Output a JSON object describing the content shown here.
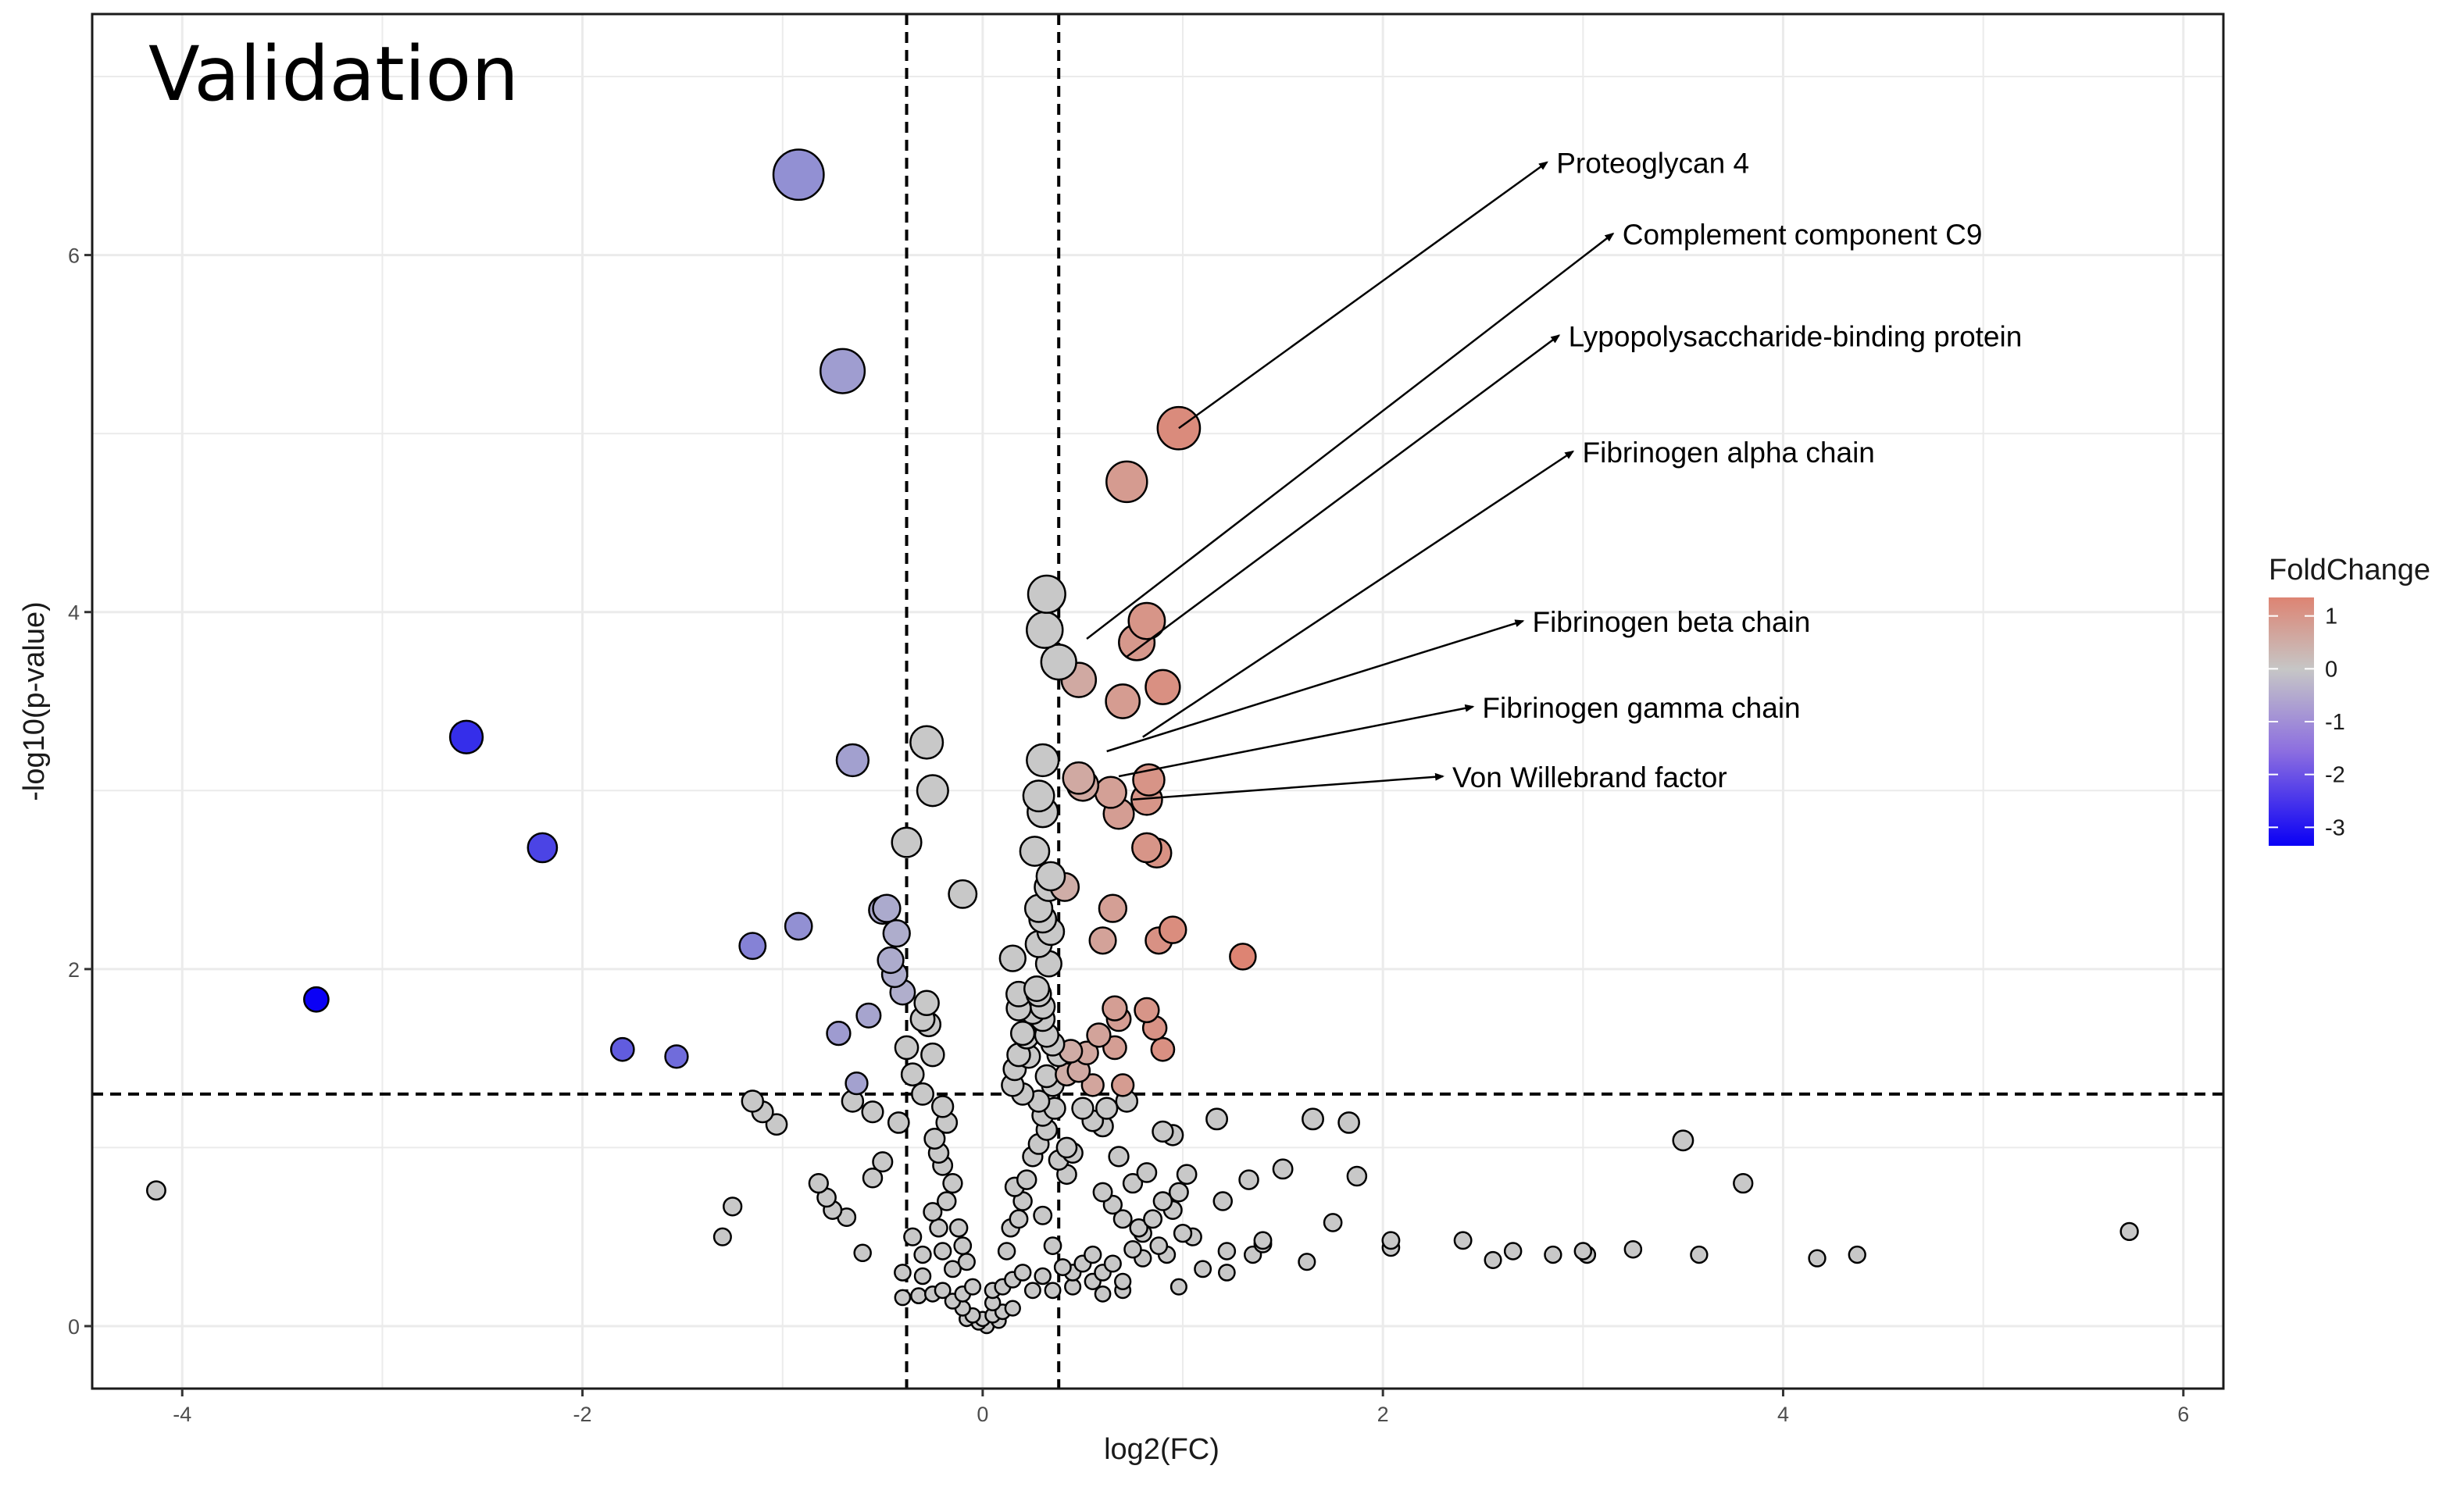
{
  "chart_data": {
    "type": "scatter",
    "title": "Validation",
    "xlabel": "log2(FC)",
    "ylabel": "-log10(p-value)",
    "xlim": [
      -4.45,
      6.2
    ],
    "ylim": [
      -0.35,
      7.35
    ],
    "x_ticks": [
      -4,
      -2,
      0,
      2,
      4,
      6
    ],
    "y_ticks": [
      0,
      2,
      4,
      6
    ],
    "x_tick_labels": [
      "-4",
      "-2",
      "0",
      "2",
      "4",
      "6"
    ],
    "y_tick_labels": [
      "0",
      "2",
      "4",
      "6"
    ],
    "grid": true,
    "thresholds": {
      "x": [
        -0.38,
        0.38
      ],
      "y": 1.3
    },
    "legend": {
      "title": "FoldChange",
      "position": "right",
      "range": [
        -3.35,
        1.35
      ],
      "ticks": [
        1,
        0,
        -1,
        -2,
        -3
      ],
      "tick_labels": [
        "1",
        "0",
        "-1",
        "-2",
        "-3"
      ],
      "colors": {
        "low": "#0a00f5",
        "mid": "#c6c6c6",
        "high": "#dd8473"
      }
    },
    "point_colors": {
      "insignificant": "#c8c8c8",
      "outline": "#000000"
    },
    "points": [
      [
        -4.13,
        0.76
      ],
      [
        -3.33,
        1.83
      ],
      [
        -2.58,
        3.3
      ],
      [
        -2.2,
        2.68
      ],
      [
        -1.8,
        1.55
      ],
      [
        -1.53,
        1.51
      ],
      [
        -1.15,
        2.13
      ],
      [
        -0.92,
        2.24
      ],
      [
        -0.92,
        6.45
      ],
      [
        -0.7,
        5.35
      ],
      [
        -0.65,
        3.17
      ],
      [
        -0.72,
        1.64
      ],
      [
        -0.63,
        1.36
      ],
      [
        -0.57,
        1.74
      ],
      [
        -0.5,
        2.33
      ],
      [
        -0.48,
        2.34
      ],
      [
        -0.46,
        2.05
      ],
      [
        -0.44,
        1.97
      ],
      [
        -0.43,
        2.2
      ],
      [
        -0.4,
        1.87
      ],
      [
        -0.38,
        2.71
      ],
      [
        -0.3,
        1.72
      ],
      [
        -0.28,
        1.81
      ],
      [
        -0.27,
        1.69
      ],
      [
        -0.28,
        3.27
      ],
      [
        -0.25,
        3.0
      ],
      [
        -0.1,
        2.42
      ],
      [
        -0.38,
        1.56
      ],
      [
        -0.35,
        1.41
      ],
      [
        -0.3,
        1.3
      ],
      [
        -0.25,
        1.52
      ],
      [
        -0.2,
        1.23
      ],
      [
        -0.24,
        1.05
      ],
      [
        -0.18,
        1.14
      ],
      [
        -0.5,
        0.92
      ],
      [
        -0.55,
        0.83
      ],
      [
        -0.65,
        1.26
      ],
      [
        -0.42,
        1.14
      ],
      [
        -1.15,
        1.26
      ],
      [
        -1.1,
        1.2
      ],
      [
        -1.03,
        1.13
      ],
      [
        -0.82,
        0.8
      ],
      [
        -0.78,
        0.72
      ],
      [
        -0.75,
        0.65
      ],
      [
        -0.68,
        0.61
      ],
      [
        -0.6,
        0.41
      ],
      [
        -1.25,
        0.67
      ],
      [
        -1.3,
        0.5
      ],
      [
        -0.55,
        1.2
      ],
      [
        -0.35,
        0.5
      ],
      [
        -0.3,
        0.4
      ],
      [
        -0.3,
        0.28
      ],
      [
        -0.4,
        0.3
      ],
      [
        -0.4,
        0.16
      ],
      [
        -0.32,
        0.17
      ],
      [
        -0.25,
        0.18
      ],
      [
        -0.2,
        0.2
      ],
      [
        -0.15,
        0.14
      ],
      [
        -0.1,
        0.1
      ],
      [
        -0.05,
        0.06
      ],
      [
        0.0,
        0.04
      ],
      [
        0.05,
        0.06
      ],
      [
        0.1,
        0.08
      ],
      [
        0.15,
        0.1
      ],
      [
        -0.1,
        0.18
      ],
      [
        -0.05,
        0.22
      ],
      [
        0.05,
        0.2
      ],
      [
        0.1,
        0.22
      ],
      [
        0.15,
        0.26
      ],
      [
        0.2,
        0.3
      ],
      [
        0.25,
        0.2
      ],
      [
        -0.15,
        0.32
      ],
      [
        -0.2,
        0.42
      ],
      [
        -0.22,
        0.55
      ],
      [
        -0.25,
        0.64
      ],
      [
        -0.18,
        0.7
      ],
      [
        -0.15,
        0.8
      ],
      [
        -0.2,
        0.9
      ],
      [
        -0.22,
        0.97
      ],
      [
        -0.12,
        0.55
      ],
      [
        -0.1,
        0.45
      ],
      [
        -0.08,
        0.36
      ],
      [
        0.12,
        0.42
      ],
      [
        0.14,
        0.55
      ],
      [
        0.18,
        0.6
      ],
      [
        0.2,
        0.7
      ],
      [
        0.16,
        0.78
      ],
      [
        0.22,
        0.82
      ],
      [
        0.25,
        0.95
      ],
      [
        0.28,
        1.02
      ],
      [
        0.32,
        1.1
      ],
      [
        0.3,
        0.62
      ],
      [
        0.35,
        0.45
      ],
      [
        0.4,
        0.33
      ],
      [
        0.45,
        0.22
      ],
      [
        0.35,
        0.2
      ],
      [
        0.3,
        0.28
      ],
      [
        0.05,
        0.13
      ],
      [
        -0.02,
        0.02
      ],
      [
        0.02,
        0.0
      ],
      [
        0.08,
        0.03
      ],
      [
        -0.08,
        0.04
      ],
      [
        0.15,
        2.06
      ],
      [
        0.18,
        1.86
      ],
      [
        0.18,
        1.78
      ],
      [
        0.2,
        1.64
      ],
      [
        0.18,
        1.52
      ],
      [
        0.16,
        1.44
      ],
      [
        0.15,
        1.35
      ],
      [
        0.2,
        1.3
      ],
      [
        0.23,
        1.51
      ],
      [
        0.22,
        1.62
      ],
      [
        0.25,
        1.76
      ],
      [
        0.27,
        1.89
      ],
      [
        0.28,
        1.86
      ],
      [
        0.3,
        1.79
      ],
      [
        0.3,
        1.72
      ],
      [
        0.32,
        1.63
      ],
      [
        0.35,
        1.58
      ],
      [
        0.38,
        1.52
      ],
      [
        0.32,
        1.4
      ],
      [
        0.35,
        1.35
      ],
      [
        0.28,
        1.26
      ],
      [
        0.3,
        1.18
      ],
      [
        0.36,
        1.22
      ],
      [
        0.42,
        1.0
      ],
      [
        0.45,
        0.97
      ],
      [
        0.38,
        0.93
      ],
      [
        0.42,
        0.85
      ],
      [
        0.5,
        1.22
      ],
      [
        0.55,
        1.15
      ],
      [
        0.62,
        1.22
      ],
      [
        0.6,
        1.12
      ],
      [
        0.72,
        1.26
      ],
      [
        0.68,
        0.95
      ],
      [
        0.75,
        0.8
      ],
      [
        0.82,
        0.86
      ],
      [
        0.6,
        0.75
      ],
      [
        0.65,
        0.68
      ],
      [
        0.7,
        0.6
      ],
      [
        0.8,
        0.52
      ],
      [
        0.85,
        0.6
      ],
      [
        0.9,
        0.7
      ],
      [
        0.95,
        0.65
      ],
      [
        0.98,
        0.75
      ],
      [
        1.02,
        0.85
      ],
      [
        1.05,
        0.5
      ],
      [
        1.0,
        0.52
      ],
      [
        1.2,
        0.7
      ],
      [
        1.33,
        0.82
      ],
      [
        1.5,
        0.88
      ],
      [
        1.65,
        1.16
      ],
      [
        1.83,
        1.14
      ],
      [
        1.87,
        0.84
      ],
      [
        1.75,
        0.58
      ],
      [
        1.4,
        0.48
      ],
      [
        1.35,
        0.4
      ],
      [
        1.22,
        0.42
      ],
      [
        1.1,
        0.32
      ],
      [
        1.17,
        1.16
      ],
      [
        0.95,
        1.07
      ],
      [
        0.9,
        1.09
      ],
      [
        0.55,
        0.4
      ],
      [
        0.6,
        0.3
      ],
      [
        0.65,
        0.35
      ],
      [
        0.7,
        0.25
      ],
      [
        0.75,
        0.43
      ],
      [
        0.8,
        0.38
      ],
      [
        0.5,
        0.35
      ],
      [
        0.55,
        0.25
      ],
      [
        0.6,
        0.18
      ],
      [
        0.45,
        0.3
      ],
      [
        0.7,
        0.2
      ],
      [
        0.78,
        0.55
      ],
      [
        0.88,
        0.45
      ],
      [
        0.92,
        0.4
      ],
      [
        1.62,
        0.36
      ],
      [
        1.4,
        0.46
      ],
      [
        1.22,
        0.3
      ],
      [
        0.98,
        0.22
      ],
      [
        2.04,
        0.48
      ],
      [
        2.04,
        0.44
      ],
      [
        2.4,
        0.48
      ],
      [
        2.55,
        0.37
      ],
      [
        2.65,
        0.42
      ],
      [
        2.85,
        0.4
      ],
      [
        3.0,
        0.42
      ],
      [
        3.02,
        0.4
      ],
      [
        3.25,
        0.43
      ],
      [
        3.58,
        0.4
      ],
      [
        4.17,
        0.38
      ],
      [
        4.37,
        0.4
      ],
      [
        3.5,
        1.04
      ],
      [
        3.8,
        0.8
      ],
      [
        5.73,
        0.53
      ],
      [
        0.28,
        2.34
      ],
      [
        0.3,
        2.28
      ],
      [
        0.34,
        2.21
      ],
      [
        0.28,
        2.14
      ],
      [
        0.33,
        2.03
      ],
      [
        0.34,
        2.52
      ],
      [
        0.33,
        2.46
      ],
      [
        0.26,
        2.66
      ],
      [
        0.3,
        2.88
      ],
      [
        0.28,
        2.97
      ],
      [
        0.3,
        3.17
      ],
      [
        0.31,
        3.9
      ],
      [
        0.32,
        4.1
      ],
      [
        0.38,
        3.72
      ],
      [
        0.48,
        3.62
      ],
      [
        0.48,
        3.07
      ],
      [
        0.5,
        3.03
      ],
      [
        0.64,
        2.99
      ],
      [
        0.68,
        2.87
      ],
      [
        0.7,
        3.5
      ],
      [
        0.77,
        3.83
      ],
      [
        0.82,
        3.95
      ],
      [
        0.9,
        3.58
      ],
      [
        0.83,
        3.06
      ],
      [
        0.82,
        2.95
      ],
      [
        0.82,
        2.68
      ],
      [
        0.87,
        2.65
      ],
      [
        0.65,
        2.34
      ],
      [
        0.6,
        2.16
      ],
      [
        0.88,
        2.16
      ],
      [
        0.95,
        2.22
      ],
      [
        1.3,
        2.07
      ],
      [
        0.66,
        1.78
      ],
      [
        0.68,
        1.72
      ],
      [
        0.82,
        1.77
      ],
      [
        0.86,
        1.67
      ],
      [
        0.9,
        1.55
      ],
      [
        0.66,
        1.56
      ],
      [
        0.58,
        1.63
      ],
      [
        0.52,
        1.53
      ],
      [
        0.44,
        1.54
      ],
      [
        0.42,
        1.41
      ],
      [
        0.48,
        1.43
      ],
      [
        0.55,
        1.35
      ],
      [
        0.7,
        1.35
      ],
      [
        0.72,
        4.73
      ],
      [
        0.98,
        5.03
      ],
      [
        0.41,
        2.46
      ]
    ],
    "point_fold_changes": [
      -4.13,
      -3.33,
      -2.58,
      -2.2,
      -1.8,
      -1.53,
      -1.15,
      -0.92,
      -0.92,
      -0.7,
      -0.65,
      -0.72,
      -0.63,
      -0.57,
      -0.5,
      -0.48,
      -0.46,
      -0.44,
      -0.43,
      -0.4,
      -0.38,
      -0.3,
      -0.28,
      -0.27,
      -0.28,
      -0.25,
      -0.1,
      -0.38,
      -0.35,
      -0.3,
      -0.25,
      -0.2,
      -0.24,
      -0.18,
      -0.5,
      -0.55,
      -0.65,
      -0.42,
      -1.15,
      -1.1,
      -1.03,
      -0.82,
      -0.78,
      -0.75,
      -0.68,
      -0.6,
      -1.25,
      -1.3,
      -0.55,
      -0.35,
      -0.3,
      -0.3,
      -0.4,
      -0.4,
      -0.32,
      -0.25,
      -0.2,
      -0.15,
      -0.1,
      -0.05,
      0.0,
      0.05,
      0.1,
      0.15,
      -0.1,
      -0.05,
      0.05,
      0.1,
      0.15,
      0.2,
      0.25,
      -0.15,
      -0.2,
      -0.22,
      -0.25,
      -0.18,
      -0.15,
      -0.2,
      -0.22,
      -0.12,
      -0.1,
      -0.08,
      0.12,
      0.14,
      0.18,
      0.2,
      0.16,
      0.22,
      0.25,
      0.28,
      0.32,
      0.3,
      0.35,
      0.4,
      0.45,
      0.35,
      0.3,
      0.05,
      -0.02,
      0.02,
      0.08,
      -0.08,
      0.15,
      0.18,
      0.18,
      0.2,
      0.18,
      0.16,
      0.15,
      0.2,
      0.23,
      0.22,
      0.25,
      0.27,
      0.28,
      0.3,
      0.3,
      0.32,
      0.35,
      0.38,
      0.32,
      0.35,
      0.28,
      0.3,
      0.36,
      0.42,
      0.45,
      0.38,
      0.42,
      0.5,
      0.55,
      0.62,
      0.6,
      0.72,
      0.68,
      0.75,
      0.82,
      0.6,
      0.65,
      0.7,
      0.8,
      0.85,
      0.9,
      0.95,
      0.98,
      1.02,
      1.05,
      1.0,
      1.2,
      1.33,
      1.5,
      1.65,
      1.83,
      1.87,
      1.75,
      1.4,
      1.35,
      1.22,
      1.1,
      1.17,
      0.95,
      0.9,
      0.55,
      0.6,
      0.65,
      0.7,
      0.75,
      0.8,
      0.5,
      0.55,
      0.6,
      0.45,
      0.7,
      0.78,
      0.88,
      0.92,
      1.62,
      1.4,
      1.22,
      0.98,
      2.04,
      2.04,
      2.4,
      2.55,
      2.65,
      2.85,
      3.0,
      3.02,
      3.25,
      3.58,
      4.17,
      4.37,
      3.5,
      3.8,
      5.73,
      0.28,
      0.3,
      0.34,
      0.28,
      0.33,
      0.34,
      0.33,
      0.26,
      0.3,
      0.28,
      0.3,
      0.31,
      0.32,
      0.38,
      0.48,
      0.48,
      0.5,
      0.64,
      0.68,
      0.7,
      0.77,
      0.82,
      0.9,
      0.83,
      0.82,
      0.82,
      0.87,
      0.65,
      0.6,
      0.88,
      0.95,
      1.3,
      0.66,
      0.68,
      0.82,
      0.86,
      0.9,
      0.66,
      0.58,
      0.52,
      0.44,
      0.42,
      0.48,
      0.55,
      0.7,
      0.72,
      0.98,
      0.41
    ],
    "annotations": [
      {
        "text": "Proteoglycan 4",
        "from": [
          0.98,
          5.03
        ],
        "to": [
          2.82,
          6.52
        ]
      },
      {
        "text": "Complement component C9",
        "from": [
          0.52,
          3.85
        ],
        "to": [
          3.15,
          6.12
        ]
      },
      {
        "text": "Lypopolysaccharide-binding protein",
        "from": [
          0.72,
          3.75
        ],
        "to": [
          2.88,
          5.55
        ]
      },
      {
        "text": "Fibrinogen alpha chain",
        "from": [
          0.8,
          3.3
        ],
        "to": [
          2.95,
          4.9
        ]
      },
      {
        "text": "Fibrinogen beta chain",
        "from": [
          0.62,
          3.22
        ],
        "to": [
          2.7,
          3.95
        ]
      },
      {
        "text": "Fibrinogen gamma chain",
        "from": [
          0.68,
          3.08
        ],
        "to": [
          2.45,
          3.47
        ]
      },
      {
        "text": "Von Willebrand factor",
        "from": [
          0.75,
          2.95
        ],
        "to": [
          2.3,
          3.08
        ]
      }
    ]
  }
}
